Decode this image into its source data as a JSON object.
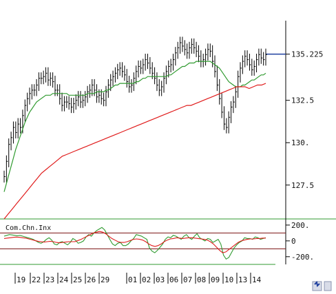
{
  "chart_data": [
    {
      "type": "line",
      "panel": "price",
      "ylim": [
        125.5,
        137.2
      ],
      "y_ticks": [
        127.5,
        130,
        132.5,
        135.225
      ],
      "y_tick_labels": [
        "127.5",
        "130.",
        "132.5",
        "135.225"
      ],
      "last_value": 135.225,
      "x_labels": [
        "19",
        "22",
        "23",
        "24",
        "25",
        "26",
        "29",
        "01",
        "02",
        "03",
        "06",
        "07",
        "08",
        "09",
        "10",
        "13",
        "14"
      ],
      "series": [
        {
          "style": "bars",
          "color": "#000000",
          "values": [
            128.0,
            128.9,
            129.9,
            130.3,
            130.9,
            130.6,
            131.1,
            130.9,
            131.6,
            132.2,
            132.6,
            132.9,
            133.1,
            133.1,
            133.4,
            133.8,
            133.8,
            133.9,
            134.1,
            133.7,
            133.8,
            133.6,
            133.1,
            133.1,
            132.6,
            132.2,
            132.4,
            132.4,
            132.3,
            132.1,
            132.3,
            132.5,
            132.7,
            132.4,
            132.5,
            132.7,
            133.0,
            133.1,
            133.4,
            133.1,
            132.7,
            132.8,
            132.6,
            132.5,
            133.0,
            133.4,
            133.7,
            133.9,
            134.1,
            134.3,
            134.4,
            134.2,
            134.0,
            133.6,
            133.3,
            133.4,
            133.8,
            134.2,
            134.5,
            134.4,
            134.6,
            134.9,
            134.7,
            134.4,
            134.1,
            133.8,
            133.4,
            133.1,
            133.3,
            133.8,
            134.2,
            134.5,
            134.6,
            134.9,
            135.3,
            135.6,
            135.9,
            135.7,
            135.5,
            135.3,
            135.6,
            135.8,
            135.6,
            135.4,
            135.1,
            134.8,
            134.9,
            135.2,
            135.5,
            135.4,
            134.8,
            134.2,
            133.4,
            132.6,
            131.8,
            131.1,
            130.9,
            131.5,
            132.1,
            132.4,
            133.0,
            133.9,
            134.4,
            134.8,
            135.1,
            134.9,
            134.6,
            134.3,
            134.5,
            134.9,
            135.2,
            135.0,
            134.9,
            135.2
          ]
        },
        {
          "style": "line",
          "color": "#2f9a2f",
          "values": [
            127.1,
            127.6,
            128.1,
            128.6,
            129.1,
            129.6,
            130.0,
            130.4,
            130.8,
            131.2,
            131.5,
            131.8,
            132.0,
            132.2,
            132.4,
            132.5,
            132.6,
            132.7,
            132.8,
            132.8,
            132.8,
            132.9,
            132.9,
            132.9,
            132.9,
            132.9,
            132.9,
            132.9,
            132.8,
            132.8,
            132.8,
            132.8,
            132.8,
            132.8,
            132.8,
            132.8,
            132.9,
            132.9,
            132.9,
            132.9,
            133.0,
            133.0,
            133.0,
            133.0,
            133.1,
            133.1,
            133.2,
            133.3,
            133.4,
            133.4,
            133.5,
            133.5,
            133.5,
            133.5,
            133.5,
            133.5,
            133.5,
            133.6,
            133.6,
            133.7,
            133.8,
            133.8,
            133.9,
            133.9,
            133.9,
            133.9,
            133.9,
            133.9,
            133.9,
            133.9,
            133.9,
            134.0,
            134.0,
            134.1,
            134.2,
            134.3,
            134.4,
            134.5,
            134.5,
            134.6,
            134.7,
            134.7,
            134.7,
            134.8,
            134.8,
            134.8,
            134.8,
            134.8,
            134.8,
            134.8,
            134.7,
            134.6,
            134.5,
            134.4,
            134.2,
            134.0,
            133.8,
            133.6,
            133.5,
            133.4,
            133.3,
            133.3,
            133.3,
            133.4,
            133.4,
            133.5,
            133.6,
            133.7,
            133.7,
            133.8,
            133.9,
            134.0,
            134.0,
            134.1
          ]
        },
        {
          "style": "line",
          "color": "#e01b1b",
          "values": [
            125.5,
            125.8,
            126.1,
            126.4,
            126.7,
            127.0,
            127.3,
            127.6,
            127.9,
            128.2,
            128.4,
            128.6,
            128.8,
            129.0,
            129.2,
            129.3,
            129.4,
            129.5,
            129.6,
            129.7,
            129.8,
            129.9,
            130.0,
            130.1,
            130.2,
            130.3,
            130.4,
            130.5,
            130.6,
            130.7,
            130.8,
            130.9,
            131.0,
            131.1,
            131.2,
            131.3,
            131.4,
            131.5,
            131.6,
            131.7,
            131.8,
            131.9,
            132.0,
            132.1,
            132.2,
            132.2,
            132.3,
            132.4,
            132.5,
            132.6,
            132.7,
            132.8,
            132.9,
            133.0,
            133.1,
            133.2,
            133.3,
            133.3,
            133.3,
            133.2,
            133.3,
            133.4,
            133.4,
            133.5
          ]
        }
      ]
    },
    {
      "type": "line",
      "panel": "indicator",
      "title": "Com.Chn.Inx",
      "ylim": [
        -280,
        260
      ],
      "y_ticks": [
        200,
        0,
        -200
      ],
      "y_tick_labels": [
        "200.",
        "0",
        "-200."
      ],
      "reference_lines": [
        100,
        -100
      ],
      "series": [
        {
          "style": "line",
          "color": "#2f9a2f",
          "values": [
            60,
            70,
            80,
            75,
            70,
            65,
            70,
            60,
            50,
            40,
            30,
            20,
            0,
            -20,
            -30,
            -10,
            20,
            40,
            10,
            -40,
            -50,
            -20,
            -10,
            -30,
            -50,
            -20,
            30,
            10,
            -30,
            -20,
            0,
            50,
            80,
            60,
            100,
            130,
            150,
            170,
            140,
            80,
            20,
            -40,
            -60,
            -30,
            -20,
            -60,
            -60,
            -40,
            0,
            30,
            80,
            70,
            60,
            40,
            20,
            -90,
            -130,
            -150,
            -120,
            -80,
            -40,
            20,
            50,
            40,
            70,
            60,
            40,
            20,
            60,
            80,
            40,
            20,
            60,
            90,
            40,
            20,
            0,
            30,
            20,
            -20,
            0,
            20,
            -40,
            -180,
            -230,
            -210,
            -150,
            -90,
            -50,
            -20,
            0,
            40,
            30,
            30,
            20,
            50,
            40,
            20,
            30,
            40
          ]
        },
        {
          "style": "line",
          "color": "#e01b1b",
          "values": [
            30,
            35,
            40,
            45,
            48,
            45,
            40,
            35,
            25,
            15,
            5,
            -5,
            -10,
            -15,
            -10,
            -5,
            -10,
            -20,
            -25,
            -20,
            -15,
            -10,
            -10,
            -10,
            5,
            20,
            40,
            60,
            80,
            100,
            110,
            120,
            110,
            90,
            60,
            30,
            10,
            -10,
            -20,
            -20,
            -10,
            5,
            20,
            25,
            20,
            10,
            -10,
            -40,
            -60,
            -70,
            -60,
            -40,
            -10,
            10,
            25,
            30,
            40,
            35,
            30,
            35,
            40,
            40,
            35,
            30,
            25,
            20,
            10,
            -10,
            -40,
            -80,
            -120,
            -150,
            -140,
            -110,
            -80,
            -50,
            -20,
            0,
            10,
            20,
            25,
            25,
            30,
            30,
            35,
            35
          ]
        }
      ]
    }
  ]
}
